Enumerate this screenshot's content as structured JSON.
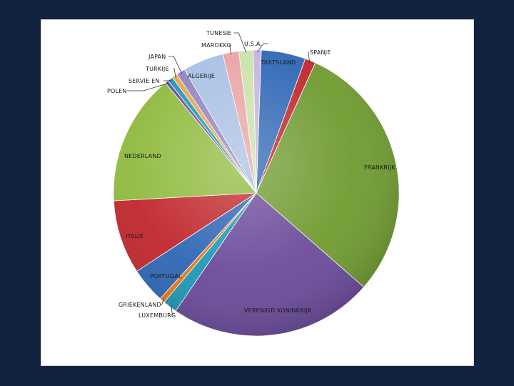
{
  "chart_data": {
    "type": "pie",
    "title": "",
    "slices": [
      {
        "label": "DUITSLAND",
        "value": 5.0,
        "color": "#2e66b5"
      },
      {
        "label": "SPANJE",
        "value": 1.2,
        "color": "#c0262b"
      },
      {
        "label": "FRANKRIJK",
        "value": 29.5,
        "color": "#6f9a2f"
      },
      {
        "label": "VERENIGD KONINKRIJK",
        "value": 23.0,
        "color": "#6a4a9a"
      },
      {
        "label": "LUXEMBURG",
        "value": 1.6,
        "color": "#1f97b5"
      },
      {
        "label": "GRIEKENLAND",
        "value": 0.6,
        "color": "#e57a16"
      },
      {
        "label": "PORTUGAL",
        "value": 4.0,
        "color": "#2e66b5"
      },
      {
        "label": "ITALIE",
        "value": 8.3,
        "color": "#c0262b"
      },
      {
        "label": "NEDERLAND",
        "value": 14.8,
        "color": "#8fba3e"
      },
      {
        "label": "POLEN",
        "value": 0.4,
        "color": "#6a4a9a"
      },
      {
        "label": "SERVIE EN",
        "value": 0.6,
        "color": "#1f97b5"
      },
      {
        "label": "TURKIJE",
        "value": 0.6,
        "color": "#e8a24a"
      },
      {
        "label": "JAPAN",
        "value": 1.0,
        "color": "#8f82c2"
      },
      {
        "label": "ALGERIJE",
        "value": 4.6,
        "color": "#a9bfe3"
      },
      {
        "label": "MAROKKO",
        "value": 1.8,
        "color": "#eaa4a4"
      },
      {
        "label": "TUNESIE",
        "value": 1.6,
        "color": "#c9e3aa"
      },
      {
        "label": "U.S.A.",
        "value": 0.9,
        "color": "#c4b4df"
      }
    ]
  }
}
